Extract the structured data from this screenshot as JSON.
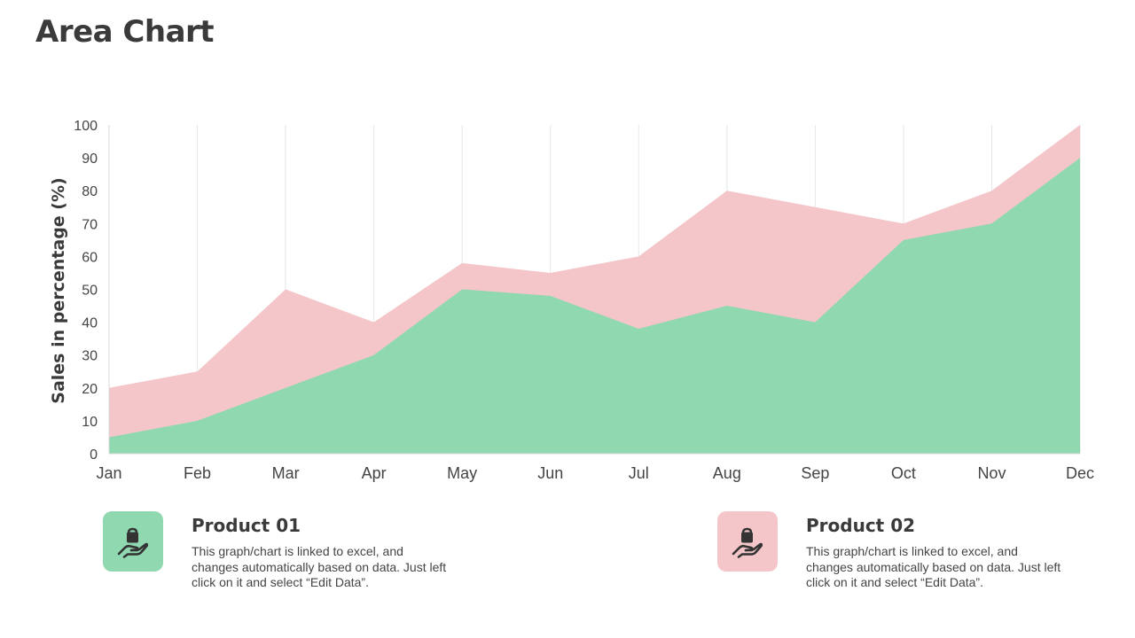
{
  "page": {
    "title": "Area Chart"
  },
  "chart_data": {
    "type": "area",
    "title": "",
    "xlabel": "",
    "ylabel": "Sales in percentage (%)",
    "ylim": [
      0,
      100
    ],
    "yticks": [
      0,
      10,
      20,
      30,
      40,
      50,
      60,
      70,
      80,
      90,
      100
    ],
    "categories": [
      "Jan",
      "Feb",
      "Mar",
      "Apr",
      "May",
      "Jun",
      "Jul",
      "Aug",
      "Sep",
      "Oct",
      "Nov",
      "Dec"
    ],
    "stacked": false,
    "grid": "vertical",
    "legend": "none",
    "series": [
      {
        "color": "#f4c6c9",
        "values": [
          20,
          25,
          50,
          40,
          58,
          55,
          60,
          80,
          75,
          70,
          80,
          100
        ]
      },
      {
        "color": "#8fd8b0",
        "values": [
          5,
          10,
          20,
          30,
          50,
          48,
          38,
          45,
          40,
          65,
          70,
          90
        ]
      }
    ]
  },
  "cards": [
    {
      "title": "Product 01",
      "text": "This graph/chart is linked to excel, and changes automatically based on data. Just left click on it and select “Edit Data”.",
      "icon": "hand-holding-bag-icon",
      "color": "#8fd8b0"
    },
    {
      "title": "Product 02",
      "text": "This graph/chart is linked to excel, and changes automatically based on data. Just left click on it and select “Edit Data”.",
      "icon": "hand-holding-bag-icon",
      "color": "#f4c6c9"
    }
  ]
}
